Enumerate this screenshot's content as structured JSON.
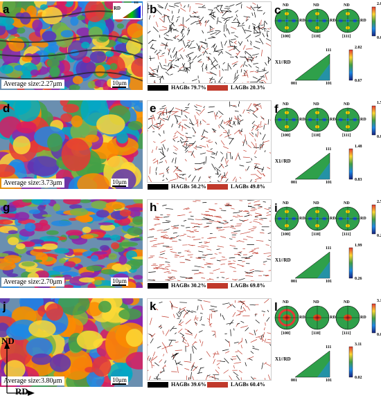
{
  "rows": [
    {
      "map_label": "a",
      "avg": "Average size:2.27μm",
      "scale": "10μm",
      "gb_label": "b",
      "hagb": "HAGBs 79.7%",
      "lagb": "LAGBs 20.3%",
      "pf_label": "c",
      "pf_max": "2.03",
      "pf_min": "0.61",
      "ipf_max": "2.02",
      "ipf_min": "0.67"
    },
    {
      "map_label": "d",
      "avg": "Average size:3.73μm",
      "scale": "10μm",
      "gb_label": "e",
      "hagb": "HAGBs 50.2%",
      "lagb": "LAGBs 49.8%",
      "pf_label": "f",
      "pf_max": "1.57",
      "pf_min": "0.81",
      "ipf_max": "1.48",
      "ipf_min": "0.83"
    },
    {
      "map_label": "g",
      "avg": "Average size:2.70μm",
      "scale": "10μm",
      "gb_label": "h",
      "hagb": "HAGBs 30.2%",
      "lagb": "LAGBs 69.8%",
      "pf_label": "i",
      "pf_max": "2.53",
      "pf_min": "0.26",
      "ipf_max": "1.99",
      "ipf_min": "0.26"
    },
    {
      "map_label": "j",
      "avg": "Average size:3.80μm",
      "scale": "10μm",
      "gb_label": "k",
      "hagb": "HAGBs 39.6%",
      "lagb": "LAGBs 60.4%",
      "pf_label": "l",
      "pf_max": "3.12",
      "pf_min": "0.02",
      "ipf_max": "3.11",
      "ipf_min": "0.02"
    }
  ],
  "pole_labels": [
    "[100]",
    "[110]",
    "[111]"
  ],
  "pole_nd": "ND",
  "pole_rd": "RD",
  "ipf_axis": "X1//RD",
  "ipf_corners": [
    "001",
    "101",
    "111"
  ],
  "legend_key": {
    "rd": "RD",
    "c001": "001",
    "c101": "101",
    "c111": "111"
  },
  "axes": {
    "nd": "ND",
    "rd": "RD"
  },
  "colors": {
    "hagb": "#000000",
    "lagb": "#c0392b"
  }
}
